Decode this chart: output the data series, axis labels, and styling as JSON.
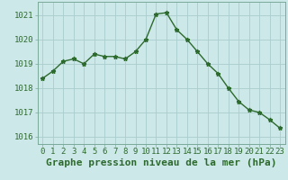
{
  "x": [
    0,
    1,
    2,
    3,
    4,
    5,
    6,
    7,
    8,
    9,
    10,
    11,
    12,
    13,
    14,
    15,
    16,
    17,
    18,
    19,
    20,
    21,
    22,
    23
  ],
  "y": [
    1018.4,
    1018.7,
    1019.1,
    1019.2,
    1019.0,
    1019.4,
    1019.3,
    1019.3,
    1019.2,
    1019.5,
    1020.0,
    1021.05,
    1021.1,
    1020.4,
    1020.0,
    1019.5,
    1019.0,
    1018.6,
    1018.0,
    1017.45,
    1017.1,
    1017.0,
    1016.7,
    1016.35
  ],
  "line_color": "#2d6a2d",
  "marker": "*",
  "marker_size": 3.5,
  "bg_color": "#cce8e8",
  "grid_color": "#aacccc",
  "xlabel": "Graphe pression niveau de la mer (hPa)",
  "xlabel_fontsize": 8,
  "xlabel_color": "#2d6a2d",
  "yticks": [
    1016,
    1017,
    1018,
    1019,
    1020,
    1021
  ],
  "xticks": [
    0,
    1,
    2,
    3,
    4,
    5,
    6,
    7,
    8,
    9,
    10,
    11,
    12,
    13,
    14,
    15,
    16,
    17,
    18,
    19,
    20,
    21,
    22,
    23
  ],
  "tick_label_color": "#2d6a2d",
  "tick_label_fontsize": 6.5,
  "ylim": [
    1015.7,
    1021.55
  ],
  "xlim": [
    -0.5,
    23.5
  ],
  "spine_color": "#7aaa99",
  "linewidth": 1.0
}
